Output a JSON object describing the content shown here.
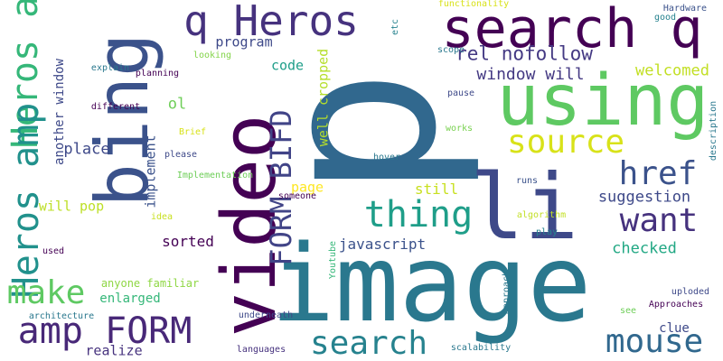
{
  "words": {
    "p": {
      "text": "p",
      "color": "#31688e"
    },
    "image": {
      "text": "image",
      "color": "#2a788e"
    },
    "video": {
      "text": "video",
      "color": "#440154"
    },
    "bing": {
      "text": "bing",
      "color": "#3b528b"
    },
    "li": {
      "text": "li",
      "color": "#3e4989"
    },
    "using": {
      "text": "using",
      "color": "#5ec962"
    },
    "search_q": {
      "text": "search q",
      "color": "#440154"
    },
    "q_heros": {
      "text": "q Heros",
      "color": "#46327e"
    },
    "heros_amp_top": {
      "text": "Heros amp",
      "color": "#35b779"
    },
    "heros_amp_left": {
      "text": "Heros amp",
      "color": "#21918c"
    },
    "source": {
      "text": "source",
      "color": "#d8e219"
    },
    "href": {
      "text": "href",
      "color": "#3b528b"
    },
    "want": {
      "text": "want",
      "color": "#46327e"
    },
    "thing": {
      "text": "thing",
      "color": "#1f9e89"
    },
    "form_bifd": {
      "text": "FORM BIFD",
      "color": "#414487"
    },
    "amp_form": {
      "text": "amp FORM",
      "color": "#482878"
    },
    "search": {
      "text": "search",
      "color": "#26828e"
    },
    "mouse": {
      "text": "mouse",
      "color": "#31688e"
    },
    "make": {
      "text": "make",
      "color": "#5ec962"
    },
    "rel_nofollow": {
      "text": "rel nofollow",
      "color": "#443983"
    },
    "window_will": {
      "text": "window will",
      "color": "#443983"
    },
    "welcomed": {
      "text": "welcomed",
      "color": "#c2df23"
    },
    "suggestion": {
      "text": "suggestion",
      "color": "#3e4989"
    },
    "checked": {
      "text": "checked",
      "color": "#22a884"
    },
    "javascript": {
      "text": "javascript",
      "color": "#3b528b"
    },
    "sorted": {
      "text": "sorted",
      "color": "#440154"
    },
    "still": {
      "text": "still",
      "color": "#c8e020"
    },
    "page": {
      "text": "page",
      "color": "#fde725"
    },
    "well_cropped": {
      "text": "well cropped",
      "color": "#b5de2b"
    },
    "code": {
      "text": "code",
      "color": "#1f9e89"
    },
    "program": {
      "text": "program",
      "color": "#3e4989"
    },
    "ol": {
      "text": "ol",
      "color": "#6ece58"
    },
    "place": {
      "text": "place",
      "color": "#3e4989"
    },
    "implement": {
      "text": "implement",
      "color": "#3b528b"
    },
    "enlarged": {
      "text": "enlarged",
      "color": "#35b779"
    },
    "another_window": {
      "text": "another window",
      "color": "#3e4989"
    },
    "will_pop": {
      "text": "will pop",
      "color": "#bddf26"
    },
    "anyone_familiar": {
      "text": "anyone familiar",
      "color": "#8fd744"
    },
    "clue": {
      "text": "clue",
      "color": "#3e4989"
    },
    "realize": {
      "text": "realize",
      "color": "#46327e"
    },
    "explain": {
      "text": "explain",
      "color": "#2a788e"
    },
    "planning": {
      "text": "planning",
      "color": "#440154"
    },
    "looking": {
      "text": "looking",
      "color": "#84d44b"
    },
    "different": {
      "text": "different",
      "color": "#440154"
    },
    "brief": {
      "text": "Brief",
      "color": "#d8e219"
    },
    "please": {
      "text": "please",
      "color": "#3e4989"
    },
    "implementation": {
      "text": "Implementation",
      "color": "#6ece58"
    },
    "someone": {
      "text": "someone",
      "color": "#440154"
    },
    "idea": {
      "text": "idea",
      "color": "#c8e020"
    },
    "used": {
      "text": "used",
      "color": "#440154"
    },
    "architecture": {
      "text": "architecture",
      "color": "#2a788e"
    },
    "underneath": {
      "text": "underneath",
      "color": "#3e4989"
    },
    "youtube": {
      "text": "Youtube",
      "color": "#35b779"
    },
    "languages": {
      "text": "languages",
      "color": "#46327e"
    },
    "approach": {
      "text": "approach",
      "color": "#2a788e"
    },
    "scalability": {
      "text": "scalability",
      "color": "#2a788e"
    },
    "see": {
      "text": "see",
      "color": "#6ece58"
    },
    "algorithm": {
      "text": "algorithm",
      "color": "#c2df23"
    },
    "play": {
      "text": "play",
      "color": "#26828e"
    },
    "runs": {
      "text": "runs",
      "color": "#3b528b"
    },
    "hover": {
      "text": "hover",
      "color": "#2a788e"
    },
    "works": {
      "text": "works",
      "color": "#7ad151"
    },
    "pause": {
      "text": "pause",
      "color": "#3e4989"
    },
    "scope": {
      "text": "scope",
      "color": "#2a788e"
    },
    "functionality": {
      "text": "functionality",
      "color": "#d8e219"
    },
    "etc": {
      "text": "etc",
      "color": "#26828e"
    },
    "hardware": {
      "text": "Hardware",
      "color": "#3b528b"
    },
    "good": {
      "text": "good",
      "color": "#26828e"
    },
    "description": {
      "text": "description",
      "color": "#2a788e"
    },
    "uploded": {
      "text": "uploded",
      "color": "#3e4989"
    },
    "approaches": {
      "text": "Approaches",
      "color": "#440154"
    }
  }
}
